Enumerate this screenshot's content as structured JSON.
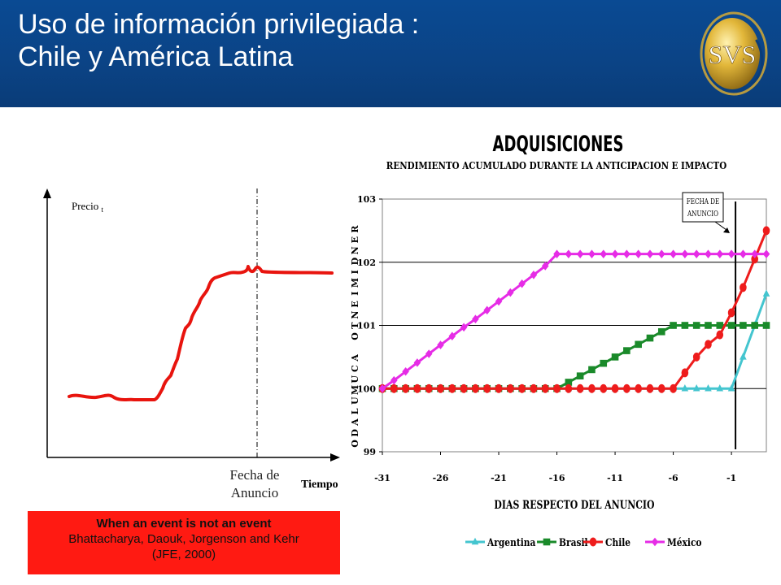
{
  "slide": {
    "title_line1": "Uso de información privilegiada :",
    "title_line2": "Chile y América Latina",
    "logo_text": "SVS"
  },
  "schematic": {
    "y_label": "Precio",
    "y_label_sub": "t",
    "x_label": "Tiempo",
    "event_label_line1": "Fecha de",
    "event_label_line2": "Anuncio",
    "line_color": "#e8140e"
  },
  "citation": {
    "line1": "When an event is not an event",
    "line2": "Bhattacharya, Daouk, Jorgenson and Kehr",
    "line3": "(JFE, 2000)"
  },
  "chart_data": {
    "type": "line",
    "title": "ADQUISICIONES",
    "subtitle": "RENDIMIENTO ACUMULADO DURANTE LA ANTICIPACION E IMPACTO",
    "xlabel": "DIAS RESPECTO DEL ANUNCIO",
    "ylabel": "RENDIMIENTO ACUMULADO",
    "xlim": [
      -31,
      2
    ],
    "ylim": [
      99,
      103
    ],
    "x_ticks": [
      -31,
      -26,
      -21,
      -16,
      -11,
      -6,
      -1
    ],
    "y_ticks": [
      99,
      100,
      101,
      102,
      103
    ],
    "grid": "horizontal",
    "legend_position": "bottom",
    "annotation": {
      "line1": "FECHA DE",
      "line2": "ANUNCIO",
      "x": -1
    },
    "x": [
      -31,
      -30,
      -29,
      -28,
      -27,
      -26,
      -25,
      -24,
      -23,
      -22,
      -21,
      -20,
      -19,
      -18,
      -17,
      -16,
      -15,
      -14,
      -13,
      -12,
      -11,
      -10,
      -9,
      -8,
      -7,
      -6,
      -5,
      -4,
      -3,
      -2,
      -1,
      0,
      1,
      2
    ],
    "series": [
      {
        "name": "Argentina",
        "color": "#44c5cf",
        "marker": "triangle",
        "values": [
          100,
          100,
          100,
          100,
          100,
          100,
          100,
          100,
          100,
          100,
          100,
          100,
          100,
          100,
          100,
          100,
          100,
          100,
          100,
          100,
          100,
          100,
          100,
          100,
          100,
          100,
          100,
          100,
          100,
          100,
          100,
          100.5,
          101,
          101.5
        ]
      },
      {
        "name": "Brasil",
        "color": "#1a8a2a",
        "marker": "square",
        "values": [
          100,
          100,
          100,
          100,
          100,
          100,
          100,
          100,
          100,
          100,
          100,
          100,
          100,
          100,
          100,
          100,
          100.1,
          100.2,
          100.3,
          100.4,
          100.5,
          100.6,
          100.7,
          100.8,
          100.9,
          101,
          101,
          101,
          101,
          101,
          101,
          101,
          101,
          101
        ]
      },
      {
        "name": "Chile",
        "color": "#ee1c1c",
        "marker": "circle",
        "values": [
          100,
          100,
          100,
          100,
          100,
          100,
          100,
          100,
          100,
          100,
          100,
          100,
          100,
          100,
          100,
          100,
          100,
          100,
          100,
          100,
          100,
          100,
          100,
          100,
          100,
          100,
          100.25,
          100.5,
          100.7,
          100.85,
          101.2,
          101.6,
          102.05,
          102.5
        ]
      },
      {
        "name": "México",
        "color": "#e62ce6",
        "marker": "diamond",
        "values": [
          100,
          100.13,
          100.27,
          100.41,
          100.55,
          100.69,
          100.83,
          100.97,
          101.1,
          101.24,
          101.38,
          101.52,
          101.66,
          101.8,
          101.94,
          102.13,
          102.13,
          102.13,
          102.13,
          102.13,
          102.13,
          102.13,
          102.13,
          102.13,
          102.13,
          102.13,
          102.13,
          102.13,
          102.13,
          102.13,
          102.13,
          102.13,
          102.13,
          102.13
        ]
      }
    ]
  }
}
